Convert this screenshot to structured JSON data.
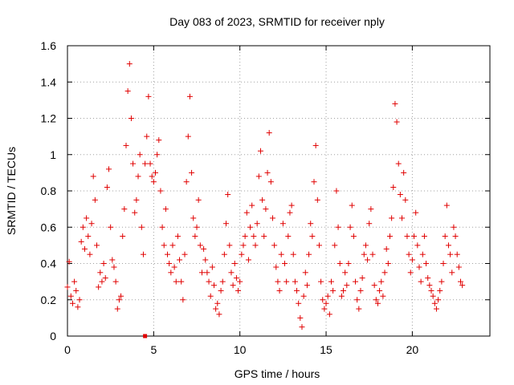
{
  "chart_data": {
    "type": "scatter",
    "title": "Day 083 of 2023, SRMTID for receiver nply",
    "xlabel": "GPS time / hours",
    "ylabel": "SRMTID / TECUs",
    "xlim": [
      0,
      24.5
    ],
    "ylim": [
      0,
      1.6
    ],
    "xticks": [
      0,
      5,
      10,
      15,
      20
    ],
    "xtick_labels": [
      "0",
      "5",
      "10",
      "15",
      "20"
    ],
    "yticks": [
      0,
      0.2,
      0.4,
      0.6,
      0.8,
      1.0,
      1.2,
      1.4,
      1.6
    ],
    "ytick_labels": [
      "0",
      "0.2",
      "0.4",
      "0.6",
      "0.8",
      "1",
      "1.2",
      "1.4",
      "1.6"
    ],
    "grid": true,
    "marker": "plus",
    "color": "#e00000",
    "series": [
      {
        "name": "SRMTID",
        "points": [
          [
            0.0,
            0.27
          ],
          [
            0.1,
            0.41
          ],
          [
            0.2,
            0.22
          ],
          [
            0.3,
            0.18
          ],
          [
            0.4,
            0.3
          ],
          [
            0.5,
            0.25
          ],
          [
            0.6,
            0.16
          ],
          [
            0.7,
            0.2
          ],
          [
            0.8,
            0.52
          ],
          [
            0.9,
            0.6
          ],
          [
            1.0,
            0.48
          ],
          [
            1.1,
            0.65
          ],
          [
            1.2,
            0.55
          ],
          [
            1.3,
            0.45
          ],
          [
            1.4,
            0.62
          ],
          [
            1.5,
            0.88
          ],
          [
            1.6,
            0.75
          ],
          [
            1.7,
            0.5
          ],
          [
            1.8,
            0.27
          ],
          [
            1.9,
            0.35
          ],
          [
            2.0,
            0.3
          ],
          [
            2.1,
            0.4
          ],
          [
            2.2,
            0.32
          ],
          [
            2.3,
            0.82
          ],
          [
            2.4,
            0.92
          ],
          [
            2.5,
            0.6
          ],
          [
            2.6,
            0.42
          ],
          [
            2.7,
            0.38
          ],
          [
            2.8,
            0.3
          ],
          [
            2.9,
            0.15
          ],
          [
            3.0,
            0.2
          ],
          [
            3.1,
            0.22
          ],
          [
            3.2,
            0.55
          ],
          [
            3.3,
            0.7
          ],
          [
            3.4,
            1.05
          ],
          [
            3.5,
            1.35
          ],
          [
            3.6,
            1.5
          ],
          [
            3.7,
            1.2
          ],
          [
            3.8,
            0.95
          ],
          [
            3.9,
            0.68
          ],
          [
            4.0,
            0.75
          ],
          [
            4.1,
            0.88
          ],
          [
            4.2,
            1.0
          ],
          [
            4.3,
            0.6
          ],
          [
            4.4,
            0.45
          ],
          [
            4.5,
            0.95
          ],
          [
            4.6,
            1.1
          ],
          [
            4.7,
            1.32
          ],
          [
            4.8,
            0.95
          ],
          [
            4.9,
            0.88
          ],
          [
            5.0,
            0.85
          ],
          [
            5.1,
            0.9
          ],
          [
            5.2,
            1.0
          ],
          [
            5.3,
            1.08
          ],
          [
            5.4,
            0.8
          ],
          [
            5.5,
            0.6
          ],
          [
            5.6,
            0.5
          ],
          [
            5.7,
            0.7
          ],
          [
            5.8,
            0.45
          ],
          [
            5.9,
            0.4
          ],
          [
            6.0,
            0.35
          ],
          [
            6.1,
            0.5
          ],
          [
            6.2,
            0.38
          ],
          [
            6.3,
            0.3
          ],
          [
            6.4,
            0.55
          ],
          [
            6.5,
            0.42
          ],
          [
            6.6,
            0.3
          ],
          [
            6.7,
            0.2
          ],
          [
            6.8,
            0.45
          ],
          [
            6.9,
            0.85
          ],
          [
            7.0,
            1.1
          ],
          [
            7.1,
            1.32
          ],
          [
            7.2,
            0.9
          ],
          [
            7.3,
            0.65
          ],
          [
            7.4,
            0.55
          ],
          [
            7.5,
            0.6
          ],
          [
            7.6,
            0.75
          ],
          [
            7.7,
            0.5
          ],
          [
            7.8,
            0.35
          ],
          [
            7.9,
            0.48
          ],
          [
            8.0,
            0.42
          ],
          [
            8.1,
            0.35
          ],
          [
            8.2,
            0.3
          ],
          [
            8.3,
            0.22
          ],
          [
            8.4,
            0.38
          ],
          [
            8.5,
            0.28
          ],
          [
            8.6,
            0.15
          ],
          [
            8.7,
            0.18
          ],
          [
            8.8,
            0.12
          ],
          [
            8.9,
            0.25
          ],
          [
            9.0,
            0.3
          ],
          [
            9.1,
            0.45
          ],
          [
            9.2,
            0.62
          ],
          [
            9.3,
            0.78
          ],
          [
            9.4,
            0.5
          ],
          [
            9.5,
            0.35
          ],
          [
            9.6,
            0.28
          ],
          [
            9.7,
            0.4
          ],
          [
            9.8,
            0.32
          ],
          [
            9.9,
            0.25
          ],
          [
            10.0,
            0.3
          ],
          [
            10.1,
            0.45
          ],
          [
            10.2,
            0.5
          ],
          [
            10.3,
            0.55
          ],
          [
            10.4,
            0.68
          ],
          [
            10.5,
            0.42
          ],
          [
            10.6,
            0.6
          ],
          [
            10.7,
            0.72
          ],
          [
            10.8,
            0.55
          ],
          [
            10.9,
            0.5
          ],
          [
            11.0,
            0.62
          ],
          [
            11.1,
            0.88
          ],
          [
            11.2,
            1.02
          ],
          [
            11.3,
            0.75
          ],
          [
            11.4,
            0.55
          ],
          [
            11.5,
            0.7
          ],
          [
            11.6,
            0.9
          ],
          [
            11.7,
            1.12
          ],
          [
            11.8,
            0.85
          ],
          [
            11.9,
            0.65
          ],
          [
            12.0,
            0.5
          ],
          [
            12.1,
            0.38
          ],
          [
            12.2,
            0.3
          ],
          [
            12.3,
            0.25
          ],
          [
            12.4,
            0.45
          ],
          [
            12.5,
            0.62
          ],
          [
            12.6,
            0.4
          ],
          [
            12.7,
            0.3
          ],
          [
            12.8,
            0.55
          ],
          [
            12.9,
            0.68
          ],
          [
            13.0,
            0.72
          ],
          [
            13.1,
            0.45
          ],
          [
            13.2,
            0.3
          ],
          [
            13.3,
            0.25
          ],
          [
            13.4,
            0.18
          ],
          [
            13.5,
            0.1
          ],
          [
            13.6,
            0.05
          ],
          [
            13.7,
            0.22
          ],
          [
            13.8,
            0.35
          ],
          [
            13.9,
            0.28
          ],
          [
            14.0,
            0.45
          ],
          [
            14.1,
            0.62
          ],
          [
            14.2,
            0.55
          ],
          [
            14.3,
            0.85
          ],
          [
            14.4,
            1.05
          ],
          [
            14.5,
            0.75
          ],
          [
            14.6,
            0.5
          ],
          [
            14.7,
            0.3
          ],
          [
            14.8,
            0.2
          ],
          [
            14.9,
            0.15
          ],
          [
            15.0,
            0.18
          ],
          [
            15.1,
            0.22
          ],
          [
            15.2,
            0.12
          ],
          [
            15.3,
            0.3
          ],
          [
            15.4,
            0.25
          ],
          [
            15.5,
            0.5
          ],
          [
            15.6,
            0.8
          ],
          [
            15.7,
            0.6
          ],
          [
            15.8,
            0.4
          ],
          [
            15.9,
            0.22
          ],
          [
            16.0,
            0.25
          ],
          [
            16.1,
            0.35
          ],
          [
            16.2,
            0.28
          ],
          [
            16.3,
            0.4
          ],
          [
            16.4,
            0.6
          ],
          [
            16.5,
            0.72
          ],
          [
            16.6,
            0.55
          ],
          [
            16.7,
            0.3
          ],
          [
            16.8,
            0.2
          ],
          [
            16.9,
            0.15
          ],
          [
            17.0,
            0.25
          ],
          [
            17.1,
            0.32
          ],
          [
            17.2,
            0.45
          ],
          [
            17.3,
            0.5
          ],
          [
            17.4,
            0.42
          ],
          [
            17.5,
            0.62
          ],
          [
            17.6,
            0.7
          ],
          [
            17.7,
            0.45
          ],
          [
            17.8,
            0.28
          ],
          [
            17.9,
            0.2
          ],
          [
            18.0,
            0.18
          ],
          [
            18.1,
            0.25
          ],
          [
            18.2,
            0.3
          ],
          [
            18.3,
            0.22
          ],
          [
            18.4,
            0.35
          ],
          [
            18.5,
            0.48
          ],
          [
            18.6,
            0.4
          ],
          [
            18.7,
            0.55
          ],
          [
            18.8,
            0.65
          ],
          [
            18.9,
            0.82
          ],
          [
            19.0,
            1.28
          ],
          [
            19.1,
            1.18
          ],
          [
            19.2,
            0.95
          ],
          [
            19.3,
            0.78
          ],
          [
            19.4,
            0.65
          ],
          [
            19.5,
            0.9
          ],
          [
            19.6,
            0.75
          ],
          [
            19.7,
            0.55
          ],
          [
            19.8,
            0.45
          ],
          [
            19.9,
            0.35
          ],
          [
            20.0,
            0.42
          ],
          [
            20.1,
            0.55
          ],
          [
            20.2,
            0.68
          ],
          [
            20.3,
            0.5
          ],
          [
            20.4,
            0.38
          ],
          [
            20.5,
            0.3
          ],
          [
            20.6,
            0.45
          ],
          [
            20.7,
            0.55
          ],
          [
            20.8,
            0.4
          ],
          [
            20.9,
            0.32
          ],
          [
            21.0,
            0.28
          ],
          [
            21.1,
            0.25
          ],
          [
            21.2,
            0.22
          ],
          [
            21.3,
            0.18
          ],
          [
            21.4,
            0.15
          ],
          [
            21.5,
            0.2
          ],
          [
            21.6,
            0.25
          ],
          [
            21.7,
            0.3
          ],
          [
            21.8,
            0.4
          ],
          [
            21.9,
            0.55
          ],
          [
            22.0,
            0.72
          ],
          [
            22.1,
            0.5
          ],
          [
            22.2,
            0.45
          ],
          [
            22.3,
            0.35
          ],
          [
            22.4,
            0.6
          ],
          [
            22.5,
            0.55
          ],
          [
            22.6,
            0.45
          ],
          [
            22.7,
            0.38
          ],
          [
            22.8,
            0.3
          ],
          [
            22.9,
            0.28
          ]
        ]
      }
    ],
    "isolated_points": [
      [
        4.5,
        0.0
      ]
    ]
  }
}
